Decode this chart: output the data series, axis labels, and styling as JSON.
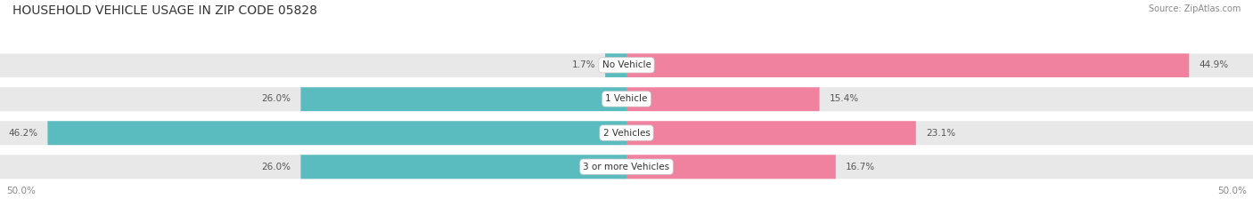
{
  "title": "HOUSEHOLD VEHICLE USAGE IN ZIP CODE 05828",
  "source": "Source: ZipAtlas.com",
  "categories": [
    "No Vehicle",
    "1 Vehicle",
    "2 Vehicles",
    "3 or more Vehicles"
  ],
  "owner_values": [
    1.7,
    26.0,
    46.2,
    26.0
  ],
  "renter_values": [
    44.9,
    15.4,
    23.1,
    16.7
  ],
  "owner_color": "#5bbcbf",
  "renter_color": "#f082a0",
  "bar_bg_color": "#e8e8e8",
  "background_color": "#ffffff",
  "separator_color": "#ffffff",
  "axis_max": 50.0,
  "label_fontsize": 7.5,
  "category_fontsize": 7.5,
  "title_fontsize": 10,
  "source_fontsize": 7,
  "legend_fontsize": 8,
  "bar_height": 0.72,
  "row_sep": 0.04,
  "figsize": [
    14.06,
    2.33
  ],
  "dpi": 100
}
